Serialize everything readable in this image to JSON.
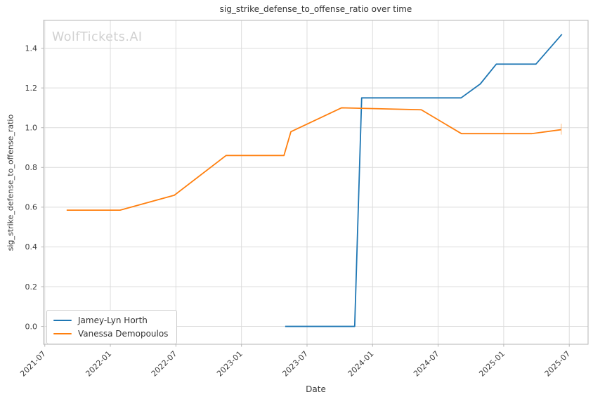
{
  "watermark": "WolfTickets.AI",
  "chart_data": {
    "type": "line",
    "title": "sig_strike_defense_to_offense_ratio over time",
    "xlabel": "Date",
    "ylabel": "sig_strike_defense_to_offense_ratio",
    "grid": true,
    "legend_position": "lower left",
    "xlim": [
      "2021-06-28",
      "2025-08-23"
    ],
    "ylim": [
      -0.09,
      1.54
    ],
    "x_tick_labels": [
      "2021-07",
      "2022-01",
      "2022-07",
      "2023-01",
      "2023-07",
      "2024-01",
      "2024-07",
      "2025-01",
      "2025-07"
    ],
    "y_ticks": [
      0.0,
      0.2,
      0.4,
      0.6,
      0.8,
      1.0,
      1.2,
      1.4
    ],
    "colors": {
      "grid": "#dcdcdc",
      "spine": "#b5b5b5",
      "tick_text": "#3c3c3c",
      "title_text": "#333333",
      "watermark_text": "#d1d1d1"
    },
    "series": [
      {
        "name": "Jamey-Lyn Horth",
        "color": "#1f77b4",
        "points": [
          [
            "2023-05-01",
            0.0
          ],
          [
            "2023-11-12",
            0.0
          ],
          [
            "2023-12-01",
            1.15
          ],
          [
            "2024-09-04",
            1.15
          ],
          [
            "2024-10-27",
            1.22
          ],
          [
            "2024-12-11",
            1.32
          ],
          [
            "2025-03-30",
            1.32
          ],
          [
            "2025-06-11",
            1.47
          ]
        ]
      },
      {
        "name": "Vanessa Demopoulos",
        "color": "#ff7f0e",
        "points": [
          [
            "2021-09-01",
            0.585
          ],
          [
            "2022-01-28",
            0.585
          ],
          [
            "2022-06-27",
            0.66
          ],
          [
            "2022-11-19",
            0.86
          ],
          [
            "2023-04-28",
            0.86
          ],
          [
            "2023-05-17",
            0.98
          ],
          [
            "2023-10-06",
            1.1
          ],
          [
            "2024-05-15",
            1.09
          ],
          [
            "2024-09-05",
            0.97
          ],
          [
            "2025-03-18",
            0.97
          ],
          [
            "2025-06-09",
            0.99
          ]
        ],
        "end_cap": {
          "date": "2025-06-09",
          "from": 0.965,
          "to": 1.02
        }
      }
    ]
  }
}
